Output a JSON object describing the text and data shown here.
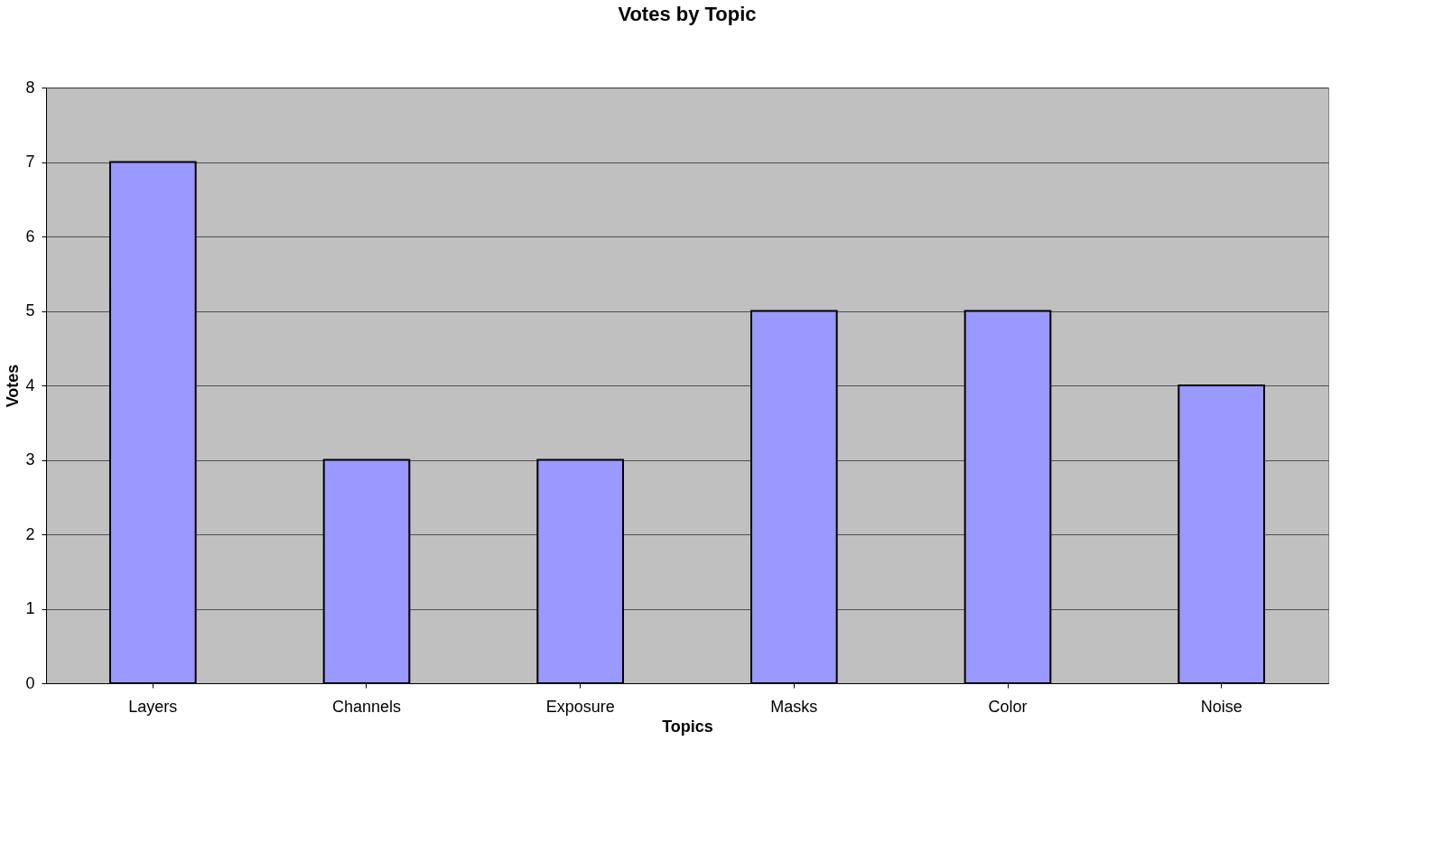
{
  "chart_data": {
    "type": "bar",
    "title": "Votes by Topic",
    "xlabel": "Topics",
    "ylabel": "Votes",
    "categories": [
      "Layers",
      "Channels",
      "Exposure",
      "Masks",
      "Color",
      "Noise"
    ],
    "values": [
      7,
      3,
      3,
      5,
      5,
      4
    ],
    "color": "#9999ff",
    "ylim": [
      0,
      8
    ],
    "yticks": [
      0,
      1,
      2,
      3,
      4,
      5,
      6,
      7,
      8
    ],
    "grid": "y"
  }
}
